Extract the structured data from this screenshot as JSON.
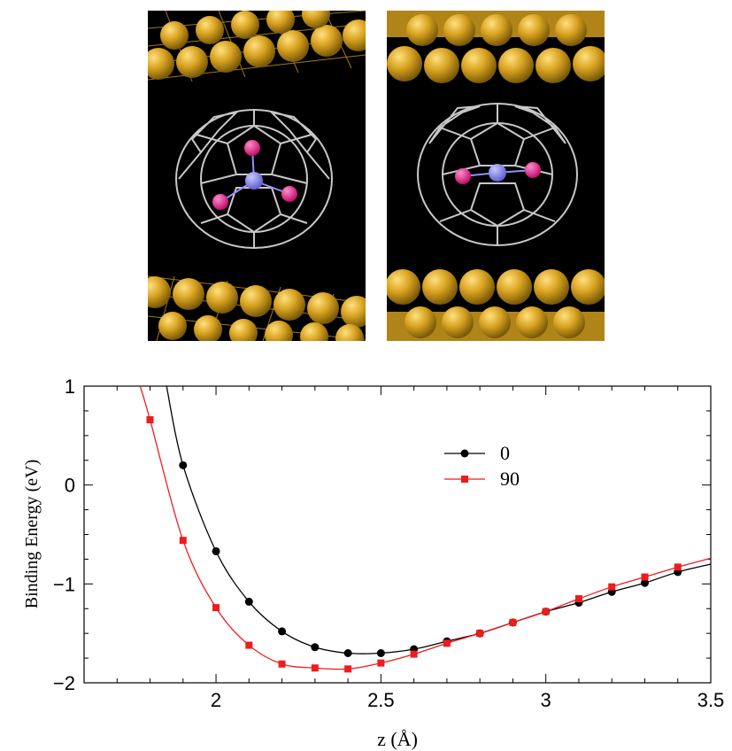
{
  "figure": {
    "panels": [
      {
        "name": "fullerene-orientation-0",
        "cage_color": "#c8c8c8",
        "slab_color": "#d4a020",
        "center_atom_color": "#8080ee",
        "outer_atom_color": "#e0208a"
      },
      {
        "name": "fullerene-orientation-90",
        "cage_color": "#c8c8c8",
        "slab_color": "#d4a020",
        "center_atom_color": "#8080ee",
        "outer_atom_color": "#e0208a"
      }
    ]
  },
  "chart_data": {
    "type": "line",
    "xlabel": "z (Å)",
    "ylabel": "Binding Energy (eV)",
    "xlim": [
      1.6,
      3.5
    ],
    "ylim": [
      -2,
      1
    ],
    "xticks": [
      2,
      2.5,
      3,
      3.5
    ],
    "xtick_labels": [
      "2",
      "2.5",
      "3",
      "3.5"
    ],
    "yticks": [
      1,
      0,
      -1,
      -2
    ],
    "ytick_labels": [
      "1",
      "0",
      "−1",
      "−2"
    ],
    "legend_position": "top-right",
    "grid": false,
    "series": [
      {
        "name": "0",
        "color": "#000000",
        "marker": "circle",
        "x": [
          1.9,
          2.0,
          2.1,
          2.2,
          2.3,
          2.4,
          2.5,
          2.6,
          2.7,
          2.8,
          2.9,
          3.0,
          3.1,
          3.2,
          3.3,
          3.4
        ],
        "y": [
          0.2,
          -0.67,
          -1.18,
          -1.48,
          -1.64,
          -1.7,
          -1.7,
          -1.66,
          -1.58,
          -1.5,
          -1.39,
          -1.28,
          -1.19,
          -1.08,
          -0.99,
          -0.88
        ],
        "curve_x": [
          1.85,
          1.9,
          2.0,
          2.1,
          2.2,
          2.3,
          2.4,
          2.5,
          2.6,
          2.7,
          2.8,
          2.9,
          3.0,
          3.1,
          3.2,
          3.3,
          3.4,
          3.5
        ],
        "curve_y": [
          1.0,
          0.2,
          -0.67,
          -1.18,
          -1.48,
          -1.64,
          -1.7,
          -1.7,
          -1.66,
          -1.58,
          -1.5,
          -1.39,
          -1.28,
          -1.19,
          -1.08,
          -0.99,
          -0.88,
          -0.8
        ]
      },
      {
        "name": "90",
        "color": "#ee1c1c",
        "marker": "square",
        "x": [
          1.8,
          1.9,
          2.0,
          2.1,
          2.2,
          2.3,
          2.4,
          2.5,
          2.6,
          2.7,
          2.8,
          2.9,
          3.0,
          3.1,
          3.2,
          3.3,
          3.4
        ],
        "y": [
          0.66,
          -0.56,
          -1.24,
          -1.62,
          -1.81,
          -1.85,
          -1.86,
          -1.8,
          -1.71,
          -1.6,
          -1.5,
          -1.39,
          -1.28,
          -1.15,
          -1.03,
          -0.93,
          -0.83
        ],
        "curve_x": [
          1.77,
          1.8,
          1.9,
          2.0,
          2.1,
          2.2,
          2.3,
          2.4,
          2.5,
          2.6,
          2.7,
          2.8,
          2.9,
          3.0,
          3.1,
          3.2,
          3.3,
          3.4,
          3.5
        ],
        "curve_y": [
          1.0,
          0.66,
          -0.56,
          -1.24,
          -1.62,
          -1.81,
          -1.85,
          -1.86,
          -1.8,
          -1.71,
          -1.6,
          -1.5,
          -1.39,
          -1.28,
          -1.15,
          -1.03,
          -0.93,
          -0.83,
          -0.74
        ]
      }
    ]
  }
}
